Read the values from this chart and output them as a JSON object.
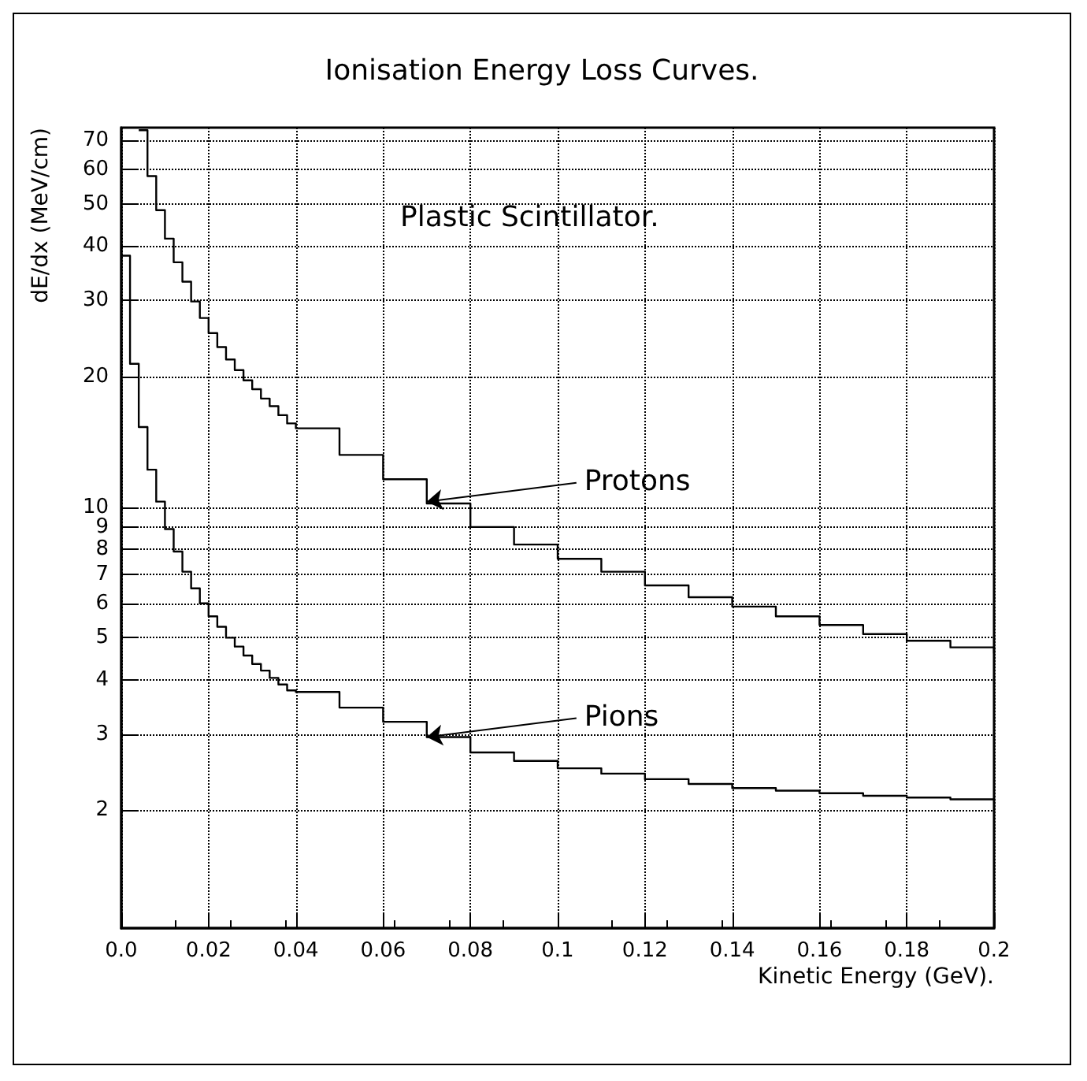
{
  "chart_data": {
    "type": "step",
    "title": "Ionisation Energy Loss Curves.",
    "xlabel": "Kinetic Energy (GeV).",
    "ylabel": "dE/dx (MeV/cm)",
    "annotations": [
      "Plastic Scintillator.",
      {
        "text": "Protons",
        "x": 0.07,
        "y": 10.3
      },
      {
        "text": "Pions",
        "x": 0.07,
        "y": 2.95
      }
    ],
    "series": [
      {
        "color": "#000000",
        "x": [
          0.004,
          0.006,
          0.008,
          0.01,
          0.012,
          0.014,
          0.016,
          0.018,
          0.02,
          0.022,
          0.024,
          0.026,
          0.028,
          0.03,
          0.032,
          0.034,
          0.036,
          0.038,
          0.04,
          0.05,
          0.06,
          0.07,
          0.08,
          0.09,
          0.1,
          0.11,
          0.12,
          0.13,
          0.14,
          0.15,
          0.16,
          0.17,
          0.18,
          0.19,
          0.2
        ],
        "values": [
          74,
          58,
          48.4,
          41.6,
          36.7,
          33.1,
          29.8,
          27.3,
          25.2,
          23.4,
          21.9,
          20.7,
          19.6,
          18.7,
          17.8,
          17.1,
          16.3,
          15.6,
          15.2,
          13.2,
          11.6,
          10.2,
          9.0,
          8.2,
          7.6,
          7.1,
          6.6,
          6.2,
          5.9,
          5.6,
          5.35,
          5.1,
          4.92,
          4.75,
          4.6
        ]
      },
      {
        "color": "#000000",
        "x": [
          0,
          0.002,
          0.004,
          0.006,
          0.008,
          0.01,
          0.012,
          0.014,
          0.016,
          0.018,
          0.02,
          0.022,
          0.024,
          0.026,
          0.028,
          0.03,
          0.032,
          0.034,
          0.036,
          0.038,
          0.04,
          0.05,
          0.06,
          0.07,
          0.08,
          0.09,
          0.1,
          0.11,
          0.12,
          0.13,
          0.14,
          0.15,
          0.16,
          0.17,
          0.18,
          0.19,
          0.2
        ],
        "values": [
          38,
          21.4,
          15.3,
          12.2,
          10.3,
          8.9,
          7.9,
          7.1,
          6.5,
          6.0,
          5.6,
          5.3,
          5.0,
          4.77,
          4.55,
          4.35,
          4.2,
          4.04,
          3.9,
          3.78,
          3.75,
          3.45,
          3.2,
          2.95,
          2.72,
          2.6,
          2.5,
          2.43,
          2.36,
          2.3,
          2.25,
          2.22,
          2.19,
          2.16,
          2.14,
          2.12,
          2.11
        ]
      }
    ],
    "log": "y",
    "xlim": [
      0,
      0.2
    ],
    "ylim": [
      1.07,
      75
    ],
    "xticks": [
      {
        "value": 0,
        "label": "0.0"
      },
      0.02,
      0.04,
      0.06,
      0.08,
      0.1,
      0.12,
      0.14,
      0.16,
      0.18,
      0.2
    ],
    "yticks": [
      2,
      3,
      4,
      5,
      6,
      7,
      8,
      9,
      10,
      20,
      30,
      40,
      50,
      60,
      70
    ],
    "grid": true,
    "marker": "none",
    "line_style": "solid"
  }
}
